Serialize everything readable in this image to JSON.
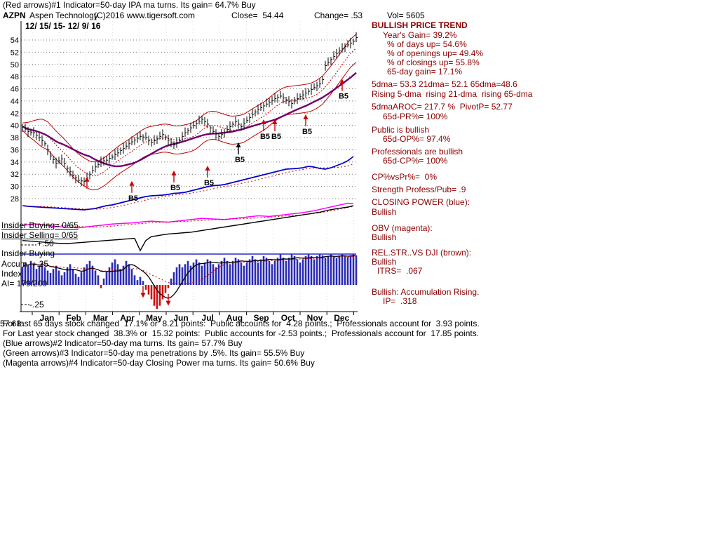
{
  "header": {
    "indicator1": "(Red arrows)#1 Indicator=50-day IPA ma turns. Its gain= 64.7% Buy",
    "ticker": "AZPN",
    "company": "Aspen Technology",
    "copyright": "(C)2016 www.tigersoft.com",
    "close": "Close=  54.44",
    "change": "Change= .53",
    "volume": "Vol= 5605"
  },
  "overlays": {
    "date_range": "12/ 15/ 15- 12/ 9/ 16",
    "insider_buying": "Insider Buying= 0/65",
    "insider_selling": "Insider Selling= 0/65",
    "plus50": "+.50",
    "insider_buying2": "Insider Buying",
    "accum_plus25": "Accum  +.25",
    "index_label": "Index",
    "ai": "AI= 179/200",
    "minus25": "-.25"
  },
  "right_panel": {
    "trend_header": "BULLISH PRICE TREND",
    "years_gain": "Year's Gain= 39.2%",
    "days_up": "% of days up= 54.6%",
    "openings_up": "% of openings up= 49.4%",
    "closings_up": "% of closings up= 55.8%",
    "gain_65d": "65-day gain= 17.1%",
    "dma_line": "5dma= 53.3 21dma= 52.1 65dma=48.6",
    "rising_line": "Rising 5-dma  rising 21-dma  rising 65-dma",
    "aroc_line": "5dmaAROC= 217.7 %  PivotP= 52.77",
    "pr_line": "65d-PR%= 100%",
    "public_line": "Public is bullish",
    "op_line": "65d-OP%= 97.4%",
    "prof_line": "Professionals are bullish",
    "cp_line": "65d-CP%= 100%",
    "cpvspr": "CP%vsPr%=  0%",
    "strength": "Strength Profess/Pub= .9",
    "cp_header": "CLOSING POWER (blue):",
    "cp_status": "Bullish",
    "obv_header": "OBV (magenta):",
    "obv_status": "Bullish",
    "rs_header": "REL.STR..VS DJI (brown):",
    "rs_status": "Bullish",
    "itrs": "ITRS=  .067",
    "accum_status": "Bullish: Accumulation Rising.",
    "ip": "IP=  .318"
  },
  "footer": {
    "overlap_number": "57.68",
    "line_65d": "For last 65 days stock changed  17.1% or  8.21 points:  Public accounts for  4.28 points.;  Professionals account for  3.93 points.",
    "line_year": "For Last year stock changed  38.3% or  15.32 points:  Public accounts for -2.53 points.;  Professionals account for  17.85 points.",
    "indicator2": "(Blue arrows)#2 Indicator=50-day ma turns. Its gain= 57.7% Buy",
    "indicator3": "(Green arrows)#3 Indicator=50-day ma penetrations by .5%. Its gain= 55.5% Buy",
    "indicator4": "(Magenta arrows)#4 Indicator=50-day Closing Power ma turns. Its gain= 50.6% Buy"
  },
  "chart_data": {
    "type": "candlestick",
    "title": "AZPN Aspen Technology",
    "date_range": "12/ 15/ 15- 12/ 9/ 16",
    "y_range": [
      28,
      55
    ],
    "y_ticks": [
      54,
      52,
      50,
      48,
      46,
      44,
      42,
      40,
      38,
      36,
      34,
      32,
      30,
      28
    ],
    "months": [
      "Jan",
      "Feb",
      "Mar",
      "Apr",
      "May",
      "Jun",
      "Jul",
      "Aug",
      "Sep",
      "Oct",
      "Nov",
      "Dec"
    ],
    "ohlc_close": [
      39.8,
      39.4,
      39.0,
      38.9,
      38.8,
      38.4,
      38.0,
      37.5,
      37.0,
      36.0,
      35.0,
      34.4,
      33.8,
      34.2,
      34.5,
      33.8,
      33.0,
      32.4,
      31.8,
      31.4,
      31.0,
      30.9,
      30.8,
      31.4,
      32.0,
      32.6,
      33.2,
      33.6,
      34.0,
      34.2,
      34.3,
      34.6,
      34.8,
      35.2,
      35.5,
      35.9,
      36.2,
      36.6,
      37.0,
      37.3,
      37.6,
      37.9,
      38.2,
      38.1,
      38.0,
      37.6,
      37.2,
      37.5,
      37.8,
      38.2,
      38.5,
      38.1,
      37.6,
      37.2,
      36.8,
      37.2,
      37.5,
      38.2,
      38.8,
      39.2,
      39.6,
      40.0,
      40.3,
      40.7,
      41.0,
      40.6,
      40.2,
      39.6,
      39.0,
      38.6,
      38.2,
      38.5,
      38.8,
      39.3,
      39.8,
      40.2,
      40.6,
      40.2,
      39.8,
      40.3,
      40.8,
      41.3,
      41.8,
      42.2,
      42.6,
      42.9,
      43.2,
      43.5,
      43.8,
      44.1,
      44.4,
      44.6,
      44.8,
      44.5,
      44.2,
      43.9,
      43.6,
      44.0,
      44.4,
      44.7,
      45.0,
      45.3,
      45.6,
      45.9,
      46.2,
      46.5,
      46.8,
      47.5,
      49.8,
      50.3,
      50.8,
      51.3,
      51.8,
      52.2,
      52.6,
      52.9,
      53.2,
      53.5,
      53.8,
      54.4
    ],
    "closing_power": [
      10,
      9,
      8.5,
      8,
      7.5,
      7,
      6.5,
      6,
      5.5,
      5,
      4.5,
      4,
      5,
      6,
      8,
      10,
      11,
      13,
      15,
      17,
      19,
      21,
      23,
      24,
      24.5,
      25,
      26,
      27.5,
      28,
      29,
      31,
      33,
      35,
      37,
      38.5,
      39,
      40,
      42,
      44,
      46,
      48,
      50,
      52,
      54,
      56,
      58,
      60,
      62,
      62.5,
      63,
      64,
      66,
      65,
      63,
      62,
      64,
      67,
      70,
      74,
      80
    ],
    "obv": [
      20,
      22,
      25,
      23,
      20,
      18,
      16,
      15,
      14,
      13,
      12,
      14,
      16,
      18,
      20,
      22,
      24,
      25,
      26,
      27,
      28,
      30,
      32,
      33,
      32,
      31,
      30,
      32,
      34,
      36,
      38,
      40,
      42,
      41,
      40,
      39,
      38,
      40,
      42,
      44,
      46,
      48,
      50,
      49,
      48,
      50,
      52,
      54,
      56,
      58,
      60,
      63,
      66,
      70,
      74,
      78,
      82,
      86,
      90,
      88
    ],
    "rel_strength": [
      15,
      14,
      13,
      12,
      11,
      10,
      9,
      8,
      8,
      9,
      10,
      11,
      12,
      13,
      14,
      15,
      16,
      17,
      18,
      19,
      20,
      -8,
      15,
      24,
      26,
      28,
      30,
      31,
      32,
      33,
      34,
      36,
      38,
      40,
      42,
      44,
      46,
      48,
      50,
      52,
      54,
      56,
      58,
      60,
      62,
      64,
      66,
      68,
      70,
      72,
      74,
      76,
      78,
      80,
      83,
      86,
      88,
      90,
      92,
      95
    ],
    "accum_index": [
      0.22,
      0.28,
      0.25,
      0.3,
      0.26,
      0.2,
      0.24,
      0.28,
      0.22,
      0.18,
      0.15,
      0.2,
      0.24,
      0.18,
      0.12,
      0.16,
      0.22,
      0.26,
      0.2,
      0.14,
      0.1,
      0.16,
      0.22,
      0.26,
      0.3,
      0.24,
      0.18,
      0.12,
      -0.04,
      0.08,
      0.16,
      0.22,
      0.28,
      0.32,
      0.26,
      0.2,
      0.24,
      0.3,
      0.26,
      0.2,
      0.12,
      0.06,
      0.1,
      0.05,
      -0.06,
      -0.12,
      -0.18,
      -0.26,
      -0.3,
      -0.26,
      -0.18,
      -0.1,
      -0.04,
      0.08,
      0.16,
      0.22,
      0.26,
      0.22,
      0.26,
      0.3,
      0.24,
      0.28,
      0.32,
      0.28,
      0.24,
      0.28,
      0.32,
      0.3,
      0.26,
      0.22,
      0.26,
      0.3,
      0.34,
      0.3,
      0.26,
      0.3,
      0.34,
      0.32,
      0.28,
      0.24,
      0.28,
      0.32,
      0.36,
      0.32,
      0.28,
      0.32,
      0.36,
      0.34,
      0.3,
      0.26,
      0.3,
      0.34,
      0.38,
      0.34,
      0.3,
      0.34,
      0.38,
      0.36,
      0.32,
      0.28,
      0.32,
      0.36,
      0.38,
      0.36,
      0.32,
      0.36,
      0.38,
      0.37,
      0.34,
      0.36,
      0.38,
      0.36,
      0.34,
      0.36,
      0.38,
      0.37,
      0.35,
      0.37,
      0.38,
      0.37
    ],
    "buy_signals": [
      {
        "i": 23,
        "price": 31.6,
        "label": ""
      },
      {
        "i": 39,
        "price": 30.9,
        "label": "B5"
      },
      {
        "i": 54,
        "price": 32.6,
        "label": "B5"
      },
      {
        "i": 66,
        "price": 33.4,
        "label": "B5"
      },
      {
        "i": 77,
        "price": 37.2,
        "label": "B5",
        "color": "#000000"
      },
      {
        "i": 86,
        "price": 41.0,
        "label": "B5"
      },
      {
        "i": 90,
        "price": 41.0,
        "label": "B5"
      },
      {
        "i": 101,
        "price": 41.8,
        "label": "B5"
      },
      {
        "i": 114,
        "price": 47.6,
        "label": "B5"
      }
    ],
    "sell_marks": [
      {
        "i": 43,
        "v": -0.16
      },
      {
        "i": 52,
        "v": -0.26
      }
    ],
    "colors": {
      "price_bars": "#000000",
      "bands": "#c00000",
      "ma_long": "#70006e",
      "closing_power": "#0000cd",
      "obv": "#ff00ff",
      "rel_strength": "#000000",
      "accum_positive": "#2b2bb4",
      "accum_negative": "#cc1111",
      "panel_text": "#8B0000"
    }
  }
}
